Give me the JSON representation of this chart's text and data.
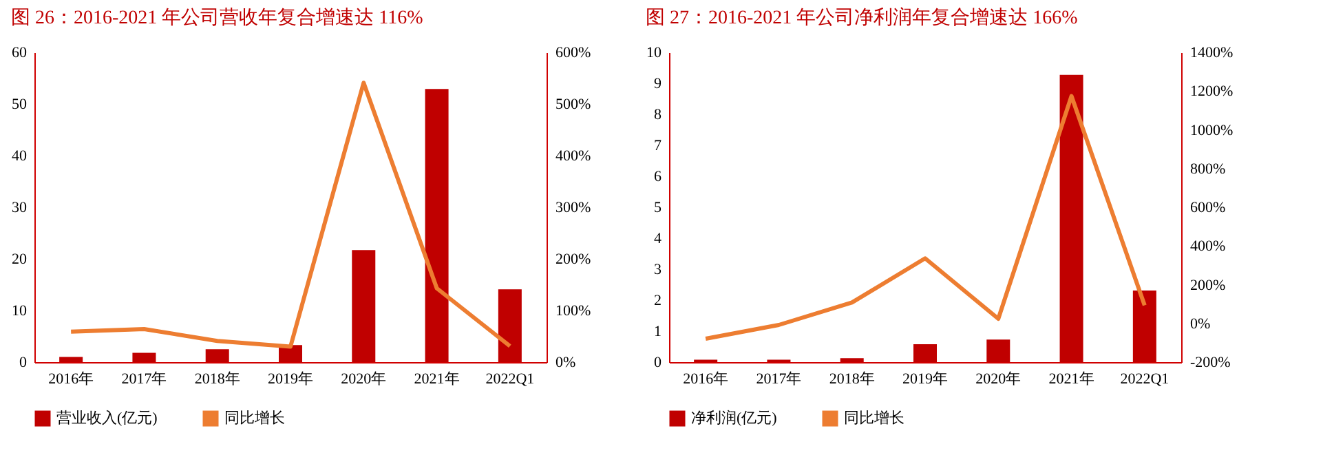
{
  "chart_data": [
    {
      "type": "bar",
      "title": "图 26：2016-2021 年公司营收年复合增速达 116%",
      "categories": [
        "2016年",
        "2017年",
        "2018年",
        "2019年",
        "2020年",
        "2021年",
        "2022Q1"
      ],
      "series": [
        {
          "name": "营业收入(亿元)",
          "color": "#c00000",
          "values": [
            1.0,
            1.8,
            2.5,
            3.3,
            21.7,
            52.9,
            14.1
          ]
        },
        {
          "name": "同比增长",
          "type": "line",
          "axis": "y2",
          "color": "#ed7d31",
          "values": [
            59,
            64,
            41,
            30,
            541,
            143,
            31
          ]
        }
      ],
      "ylim": [
        0,
        60
      ],
      "yticks": [
        0,
        10,
        20,
        30,
        40,
        50,
        60
      ],
      "y2lim": [
        0,
        600
      ],
      "y2ticks": [
        {
          "value": 0,
          "label": "0%"
        },
        {
          "value": 100,
          "label": "100%"
        },
        {
          "value": 200,
          "label": "200%"
        },
        {
          "value": 300,
          "label": "300%"
        },
        {
          "value": 400,
          "label": "400%"
        },
        {
          "value": 500,
          "label": "500%"
        },
        {
          "value": 600,
          "label": "600%"
        }
      ],
      "grid": false,
      "legend": "bottom"
    },
    {
      "type": "bar",
      "title": "图 27：2016-2021 年公司净利润年复合增速达 166%",
      "categories": [
        "2016年",
        "2017年",
        "2018年",
        "2019年",
        "2020年",
        "2021年",
        "2022Q1"
      ],
      "series": [
        {
          "name": "净利润(亿元)",
          "color": "#c00000",
          "values": [
            0.08,
            0.08,
            0.13,
            0.58,
            0.73,
            9.27,
            2.31
          ]
        },
        {
          "name": "同比增长",
          "type": "line",
          "axis": "y2",
          "color": "#ed7d31",
          "values": [
            -79,
            -8,
            108,
            336,
            24,
            1174,
            93
          ]
        }
      ],
      "ylim": [
        0,
        10
      ],
      "yticks": [
        0,
        1,
        2,
        3,
        4,
        5,
        6,
        7,
        8,
        9,
        10
      ],
      "y2lim": [
        -200,
        1400
      ],
      "y2ticks": [
        {
          "value": -200,
          "label": "-200%"
        },
        {
          "value": 0,
          "label": "0%"
        },
        {
          "value": 200,
          "label": "200%"
        },
        {
          "value": 400,
          "label": "400%"
        },
        {
          "value": 600,
          "label": "600%"
        },
        {
          "value": 800,
          "label": "800%"
        },
        {
          "value": 1000,
          "label": "1000%"
        },
        {
          "value": 1200,
          "label": "1200%"
        },
        {
          "value": 1400,
          "label": "1400%"
        }
      ],
      "grid": false,
      "legend": "bottom"
    }
  ]
}
